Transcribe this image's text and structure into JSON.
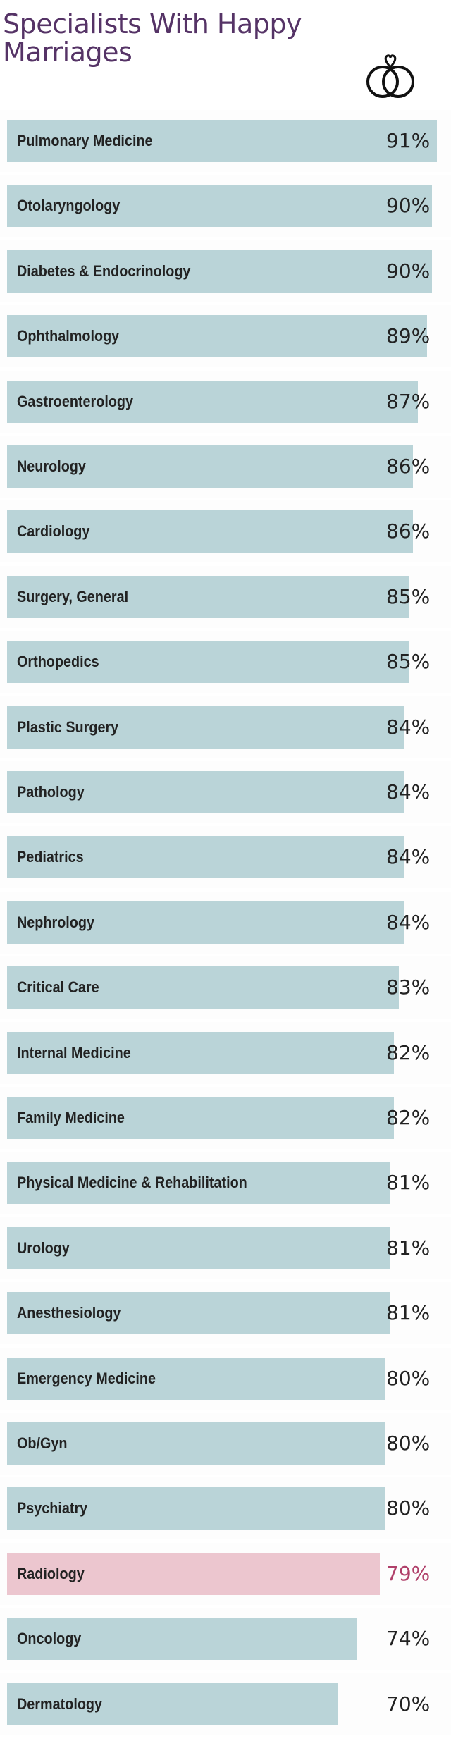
{
  "chart_data": {
    "type": "bar",
    "orientation": "horizontal",
    "title": "Specialists With Happy Marriages",
    "xlim": [
      0,
      100
    ],
    "grid": false,
    "legend": "none",
    "value_suffix": "%",
    "categories": [
      "Pulmonary Medicine",
      "Otolaryngology",
      "Diabetes & Endocrinology",
      "Ophthalmology",
      "Gastroenterology",
      "Neurology",
      "Cardiology",
      "Surgery, General",
      "Orthopedics",
      "Plastic Surgery",
      "Pathology",
      "Pediatrics",
      "Nephrology",
      "Critical Care",
      "Internal Medicine",
      "Family Medicine",
      "Physical Medicine & Rehabilitation",
      "Urology",
      "Anesthesiology",
      "Emergency Medicine",
      "Ob/Gyn",
      "Psychiatry",
      "Radiology",
      "Oncology",
      "Dermatology"
    ],
    "values": [
      91,
      90,
      90,
      89,
      87,
      86,
      86,
      85,
      85,
      84,
      84,
      84,
      84,
      83,
      82,
      82,
      81,
      81,
      81,
      80,
      80,
      80,
      79,
      74,
      70
    ],
    "highlight": "Radiology"
  },
  "colors": {
    "title": "#553366",
    "bar": "#bad4d8",
    "bar_highlight": "#ecc6cf",
    "label": "#222222",
    "value": "#222222",
    "value_highlight": "#b0406a",
    "icon": "#111111"
  },
  "icons": {
    "header": "wedding-rings-icon"
  }
}
